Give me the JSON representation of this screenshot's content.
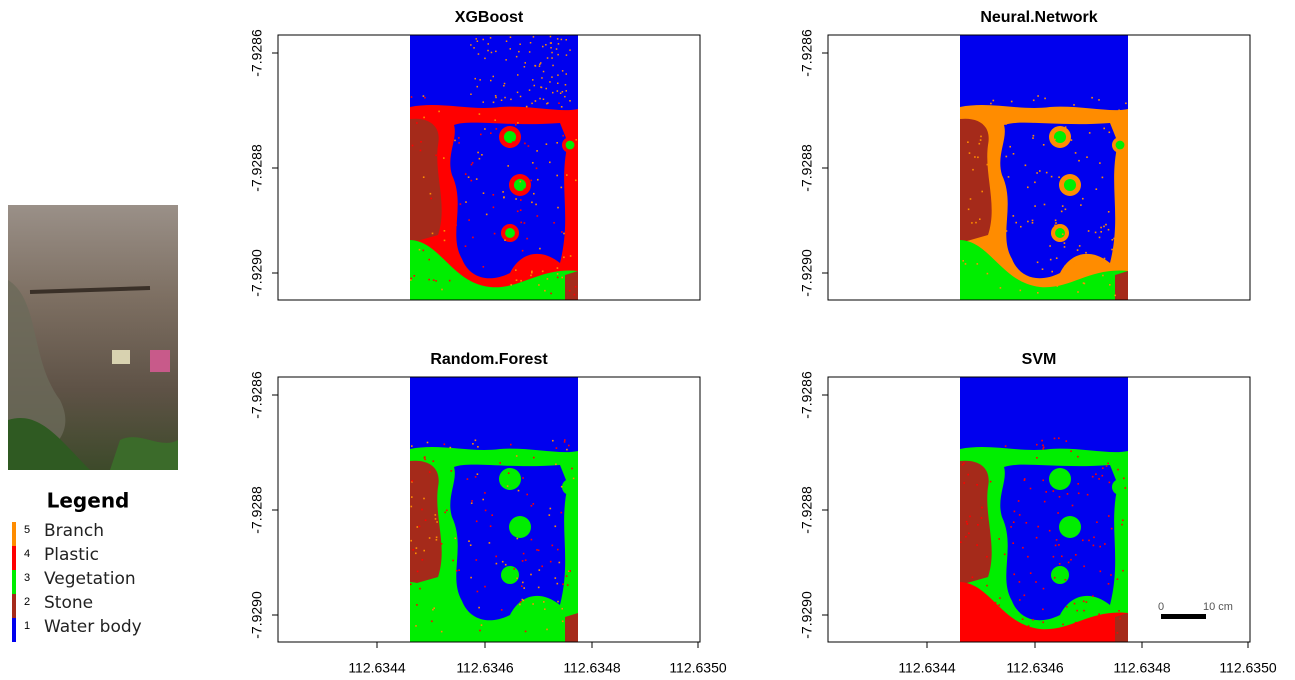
{
  "legend": {
    "title": "Legend",
    "items": [
      {
        "code": "5",
        "label": "Branch",
        "color": "#ff8c00"
      },
      {
        "code": "4",
        "label": "Plastic",
        "color": "#ff0000"
      },
      {
        "code": "3",
        "label": "Vegetation",
        "color": "#00ee00"
      },
      {
        "code": "2",
        "label": "Stone",
        "color": "#a52a1a"
      },
      {
        "code": "1",
        "label": "Water body",
        "color": "#0000ee"
      }
    ]
  },
  "panels": [
    {
      "title": "XGBoost"
    },
    {
      "title": "Neural.Network"
    },
    {
      "title": "Random.Forest"
    },
    {
      "title": "SVM"
    }
  ],
  "y_ticks": [
    "-7.9286",
    "-7.9288",
    "-7.9290"
  ],
  "x_ticks": [
    "112.6344",
    "112.6346",
    "112.6348",
    "112.6350"
  ],
  "scale_bar": {
    "start": "0",
    "end": "10 cm"
  }
}
